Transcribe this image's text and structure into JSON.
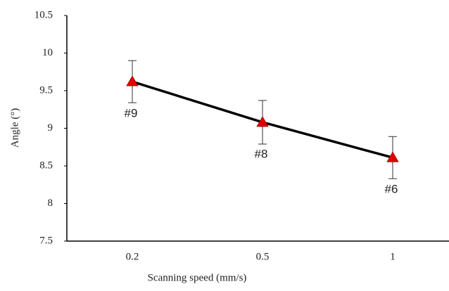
{
  "chart_data": {
    "type": "line",
    "x_label": "Scanning speed (mm/s)",
    "y_label": "Angle (°)",
    "categories": [
      "0.2",
      "0.5",
      "1"
    ],
    "values": [
      9.62,
      9.08,
      8.61
    ],
    "errors": [
      0.28,
      0.29,
      0.28
    ],
    "point_labels": [
      "#9",
      "#8",
      "#6"
    ],
    "color": "#000000",
    "marker_color": "#e00000",
    "ylim": [
      7.5,
      10.5
    ],
    "yticks": [
      7.5,
      8,
      8.5,
      9,
      9.5,
      10,
      10.5
    ],
    "grid": false
  }
}
